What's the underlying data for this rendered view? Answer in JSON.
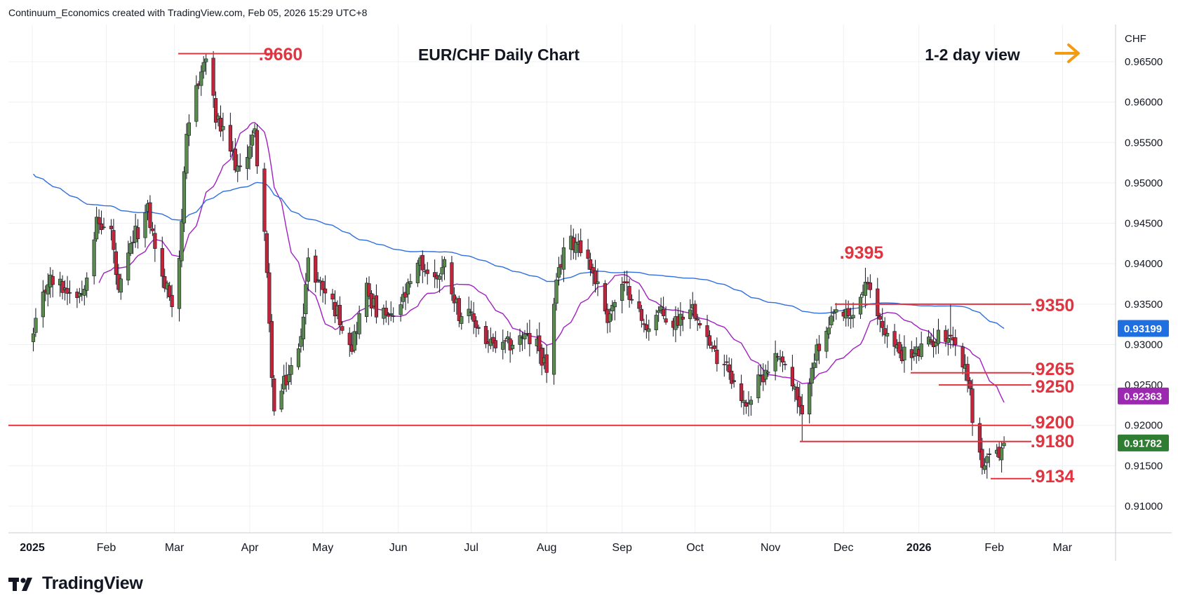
{
  "attribution": "Continuum_Economics created with TradingView.com, Feb 05, 2026 15:29 UTC+8",
  "brand": "TradingView",
  "colors": {
    "up_candle": "#5b8a4f",
    "down_candle": "#c2243a",
    "wick": "#131722",
    "ma_long": "#2f6fe0",
    "ma_short": "#a020c0",
    "level_line": "#e5323f",
    "price_badge": "#1e6fe0",
    "ma_badge": "#9c27b0",
    "last_badge": "#2e7d32",
    "arrow": "#f39c12",
    "grid": "#eef0f3"
  },
  "chart_data": {
    "type": "candlestick",
    "title": "EUR/CHF Daily Chart",
    "subtitle": "1-2 day view",
    "currency": "CHF",
    "ylim": [
      0.906,
      0.9675
    ],
    "y_ticks": [
      "0.96500",
      "0.96000",
      "0.95500",
      "0.95000",
      "0.94500",
      "0.94000",
      "0.93500",
      "0.93000",
      "0.92500",
      "0.92000",
      "0.91500",
      "0.91000"
    ],
    "x_months": [
      "2025",
      "Feb",
      "Mar",
      "Apr",
      "May",
      "Jun",
      "Jul",
      "Aug",
      "Sep",
      "Oct",
      "Nov",
      "Dec",
      "2026",
      "Feb",
      "Mar"
    ],
    "levels": [
      {
        "label": ".9660",
        "value": 0.966
      },
      {
        "label": ".9395",
        "value": 0.9395
      },
      {
        "label": ".9350",
        "value": 0.935
      },
      {
        "label": ".9265",
        "value": 0.9265
      },
      {
        "label": ".9250",
        "value": 0.925
      },
      {
        "label": ".9200",
        "value": 0.92
      },
      {
        "label": ".9180",
        "value": 0.918
      },
      {
        "label": ".9134",
        "value": 0.9134
      }
    ],
    "badges": [
      {
        "label": "0.93199",
        "value": 0.93199,
        "series": "ma_long"
      },
      {
        "label": "0.92363",
        "value": 0.92363,
        "series": "ma_short"
      },
      {
        "label": "0.91782",
        "value": 0.91782,
        "series": "last"
      }
    ],
    "anchors": [
      [
        "2025-01-02",
        0.931
      ],
      [
        "2025-01-08",
        0.938
      ],
      [
        "2025-01-15",
        0.937
      ],
      [
        "2025-01-22",
        0.9365
      ],
      [
        "2025-01-28",
        0.945
      ],
      [
        "2025-02-03",
        0.944
      ],
      [
        "2025-02-06",
        0.936
      ],
      [
        "2025-02-12",
        0.943
      ],
      [
        "2025-02-18",
        0.9465
      ],
      [
        "2025-02-24",
        0.938
      ],
      [
        "2025-02-28",
        0.9355
      ],
      [
        "2025-03-03",
        0.941
      ],
      [
        "2025-03-06",
        0.955
      ],
      [
        "2025-03-10",
        0.962
      ],
      [
        "2025-03-14",
        0.9655
      ],
      [
        "2025-03-18",
        0.958
      ],
      [
        "2025-03-24",
        0.954
      ],
      [
        "2025-03-28",
        0.951
      ],
      [
        "2025-04-01",
        0.955
      ],
      [
        "2025-04-03",
        0.956
      ],
      [
        "2025-04-07",
        0.944
      ],
      [
        "2025-04-09",
        0.932
      ],
      [
        "2025-04-11",
        0.9215
      ],
      [
        "2025-04-15",
        0.925
      ],
      [
        "2025-04-21",
        0.929
      ],
      [
        "2025-04-25",
        0.94
      ],
      [
        "2025-05-01",
        0.937
      ],
      [
        "2025-05-07",
        0.934
      ],
      [
        "2025-05-13",
        0.93
      ],
      [
        "2025-05-19",
        0.937
      ],
      [
        "2025-05-23",
        0.934
      ],
      [
        "2025-05-29",
        0.933
      ],
      [
        "2025-06-04",
        0.936
      ],
      [
        "2025-06-10",
        0.94
      ],
      [
        "2025-06-16",
        0.938
      ],
      [
        "2025-06-20",
        0.94
      ],
      [
        "2025-06-26",
        0.934
      ],
      [
        "2025-07-02",
        0.933
      ],
      [
        "2025-07-08",
        0.93
      ],
      [
        "2025-07-14",
        0.9295
      ],
      [
        "2025-07-22",
        0.931
      ],
      [
        "2025-07-28",
        0.93
      ],
      [
        "2025-08-01",
        0.927
      ],
      [
        "2025-08-05",
        0.937
      ],
      [
        "2025-08-08",
        0.942
      ],
      [
        "2025-08-14",
        0.943
      ],
      [
        "2025-08-20",
        0.939
      ],
      [
        "2025-08-26",
        0.9335
      ],
      [
        "2025-09-01",
        0.937
      ],
      [
        "2025-09-05",
        0.9365
      ],
      [
        "2025-09-10",
        0.932
      ],
      [
        "2025-09-16",
        0.934
      ],
      [
        "2025-09-22",
        0.9325
      ],
      [
        "2025-09-29",
        0.935
      ],
      [
        "2025-10-03",
        0.9335
      ],
      [
        "2025-10-08",
        0.929
      ],
      [
        "2025-10-14",
        0.928
      ],
      [
        "2025-10-20",
        0.9225
      ],
      [
        "2025-10-24",
        0.9235
      ],
      [
        "2025-10-30",
        0.927
      ],
      [
        "2025-11-05",
        0.929
      ],
      [
        "2025-11-11",
        0.924
      ],
      [
        "2025-11-14",
        0.9205
      ],
      [
        "2025-11-18",
        0.928
      ],
      [
        "2025-11-24",
        0.931
      ],
      [
        "2025-11-28",
        0.934
      ],
      [
        "2025-12-04",
        0.933
      ],
      [
        "2025-12-10",
        0.9375
      ],
      [
        "2025-12-16",
        0.933
      ],
      [
        "2025-12-22",
        0.9295
      ],
      [
        "2025-12-29",
        0.9285
      ],
      [
        "2026-01-05",
        0.93
      ],
      [
        "2026-01-09",
        0.931
      ],
      [
        "2026-01-14",
        0.9315
      ],
      [
        "2026-01-19",
        0.9275
      ],
      [
        "2026-01-21",
        0.9265
      ],
      [
        "2026-01-23",
        0.921
      ],
      [
        "2026-01-27",
        0.915
      ],
      [
        "2026-01-30",
        0.9155
      ],
      [
        "2026-02-03",
        0.9165
      ],
      [
        "2026-02-05",
        0.9178
      ]
    ]
  }
}
